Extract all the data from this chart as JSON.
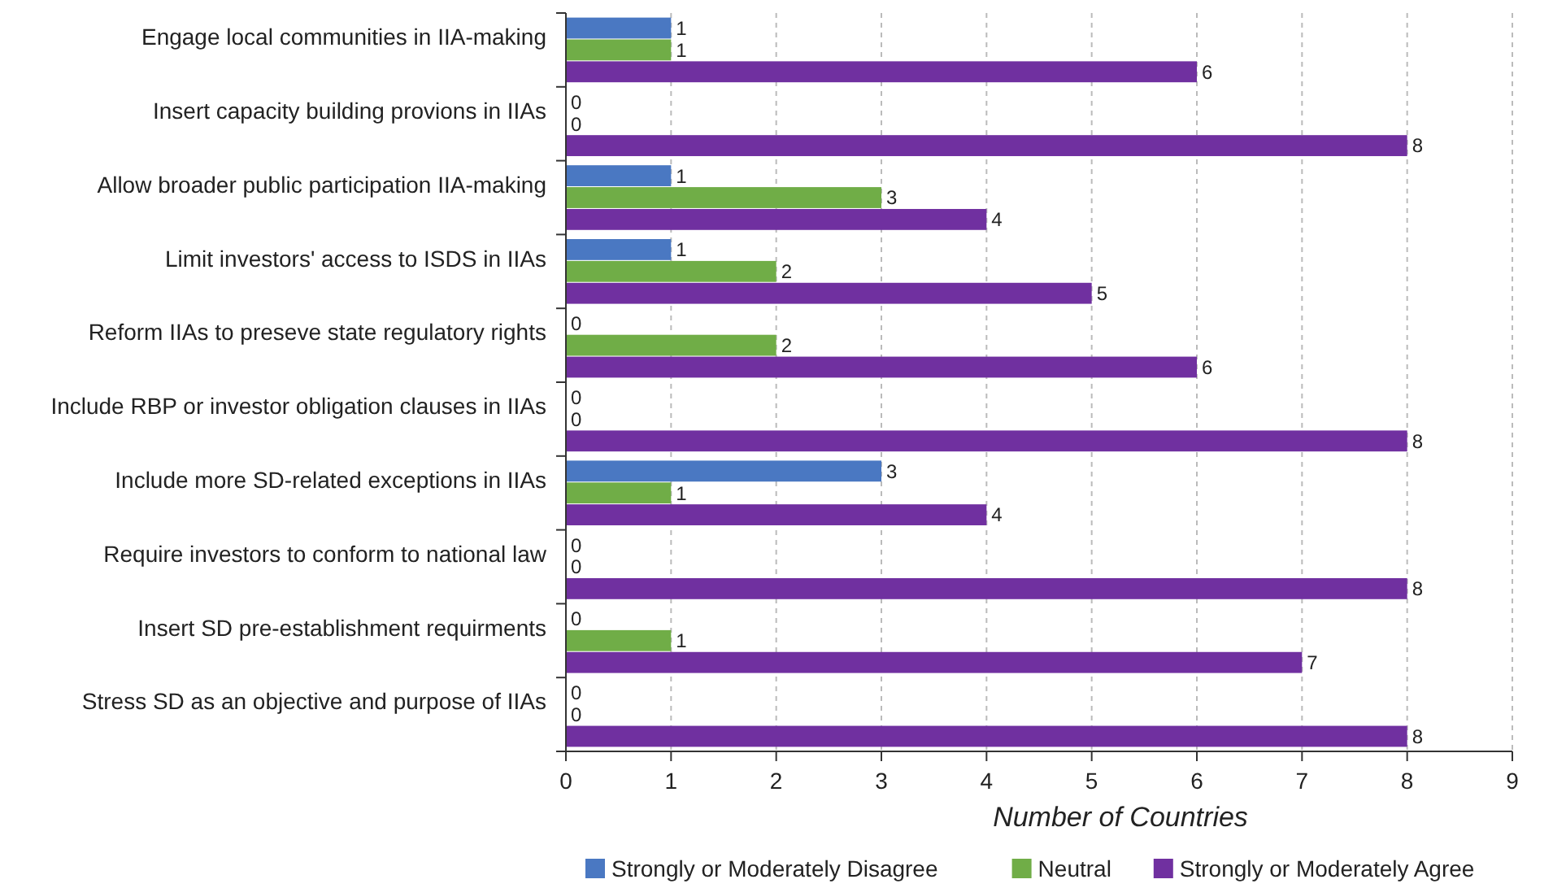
{
  "chart_data": {
    "type": "bar",
    "orientation": "horizontal",
    "categories": [
      "Engage local communities in IIA-making",
      "Insert capacity building provions in IIAs",
      "Allow broader public participation IIA-making",
      "Limit investors' access to ISDS in IIAs",
      "Reform IIAs to preseve state regulatory rights",
      "Include RBP or investor obligation clauses in IIAs",
      "Include more SD-related exceptions in IIAs",
      "Require investors to conform to national law",
      "Insert SD pre-establishment requirments",
      "Stress SD as an objective and purpose of IIAs"
    ],
    "series": [
      {
        "name": "Strongly or Moderately Disagree",
        "color": "#4a78c2",
        "values": [
          1,
          0,
          1,
          1,
          0,
          0,
          3,
          0,
          0,
          0
        ]
      },
      {
        "name": "Neutral",
        "color": "#70ad47",
        "values": [
          1,
          0,
          3,
          2,
          2,
          0,
          1,
          0,
          1,
          0
        ]
      },
      {
        "name": "Strongly or Moderately Agree",
        "color": "#7030a0",
        "values": [
          6,
          8,
          4,
          5,
          6,
          8,
          4,
          8,
          7,
          8
        ]
      }
    ],
    "xlabel": "Number of Countries",
    "xlim": [
      0,
      9
    ],
    "xticks": [
      0,
      1,
      2,
      3,
      4,
      5,
      6,
      7,
      8,
      9
    ],
    "grid": "x",
    "legend": "bottom",
    "data_labels": true
  }
}
